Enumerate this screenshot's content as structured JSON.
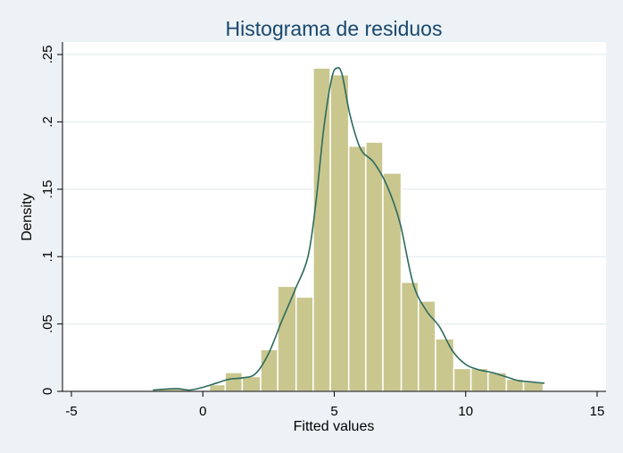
{
  "chart_data": {
    "type": "bar",
    "title": "Histograma de residuos",
    "xlabel": "Fitted values",
    "ylabel": "Density",
    "xlim": [
      -5,
      15
    ],
    "ylim": [
      0,
      0.25
    ],
    "x_ticks": [
      {
        "value": -5,
        "label": "-5"
      },
      {
        "value": 0,
        "label": "0"
      },
      {
        "value": 5,
        "label": "5"
      },
      {
        "value": 10,
        "label": "10"
      },
      {
        "value": 15,
        "label": "15"
      }
    ],
    "y_ticks": [
      {
        "value": 0,
        "label": "0"
      },
      {
        "value": 0.05,
        "label": ".05"
      },
      {
        "value": 0.1,
        "label": ".1"
      },
      {
        "value": 0.15,
        "label": ".15"
      },
      {
        "value": 0.2,
        "label": ".2"
      },
      {
        "value": 0.25,
        "label": ".25"
      }
    ],
    "grid": true,
    "colors": {
      "background": "#ecf2f5",
      "plot_background": "#ffffff",
      "bar_fill": "#c9c78e",
      "kde_line": "#2d6a5e",
      "title": "#1a476f"
    },
    "bins": [
      {
        "x0": -1.9,
        "x1": -0.5,
        "density": 0.002
      },
      {
        "x0": -0.5,
        "x1": 0.25,
        "density": 0.0
      },
      {
        "x0": 0.25,
        "x1": 0.85,
        "density": 0.005
      },
      {
        "x0": 0.85,
        "x1": 1.5,
        "density": 0.014
      },
      {
        "x0": 1.5,
        "x1": 2.2,
        "density": 0.011
      },
      {
        "x0": 2.2,
        "x1": 2.85,
        "density": 0.031
      },
      {
        "x0": 2.85,
        "x1": 3.55,
        "density": 0.078
      },
      {
        "x0": 3.55,
        "x1": 4.2,
        "density": 0.07
      },
      {
        "x0": 4.2,
        "x1": 4.85,
        "density": 0.24
      },
      {
        "x0": 4.85,
        "x1": 5.55,
        "density": 0.235
      },
      {
        "x0": 5.55,
        "x1": 6.2,
        "density": 0.182
      },
      {
        "x0": 6.2,
        "x1": 6.85,
        "density": 0.185
      },
      {
        "x0": 6.85,
        "x1": 7.55,
        "density": 0.162
      },
      {
        "x0": 7.55,
        "x1": 8.2,
        "density": 0.081
      },
      {
        "x0": 8.2,
        "x1": 8.85,
        "density": 0.067
      },
      {
        "x0": 8.85,
        "x1": 9.55,
        "density": 0.039
      },
      {
        "x0": 9.55,
        "x1": 10.2,
        "density": 0.017
      },
      {
        "x0": 10.2,
        "x1": 10.85,
        "density": 0.017
      },
      {
        "x0": 10.85,
        "x1": 11.55,
        "density": 0.014
      },
      {
        "x0": 11.55,
        "x1": 12.2,
        "density": 0.009
      },
      {
        "x0": 12.2,
        "x1": 12.95,
        "density": 0.007
      }
    ],
    "kde": {
      "x": [
        -1.9,
        -1.0,
        -0.5,
        0.0,
        0.5,
        1.0,
        1.5,
        2.0,
        2.5,
        3.0,
        3.5,
        4.0,
        4.3,
        4.6,
        4.9,
        5.1,
        5.3,
        5.6,
        6.0,
        6.5,
        7.0,
        7.5,
        8.0,
        8.5,
        9.0,
        9.5,
        10.0,
        10.5,
        11.0,
        11.5,
        12.0,
        12.5,
        13.0
      ],
      "y": [
        0.001,
        0.002,
        0.001,
        0.003,
        0.006,
        0.009,
        0.01,
        0.013,
        0.028,
        0.052,
        0.075,
        0.1,
        0.14,
        0.195,
        0.232,
        0.24,
        0.235,
        0.205,
        0.18,
        0.17,
        0.153,
        0.125,
        0.08,
        0.06,
        0.048,
        0.03,
        0.02,
        0.016,
        0.014,
        0.011,
        0.008,
        0.007,
        0.006
      ]
    }
  }
}
